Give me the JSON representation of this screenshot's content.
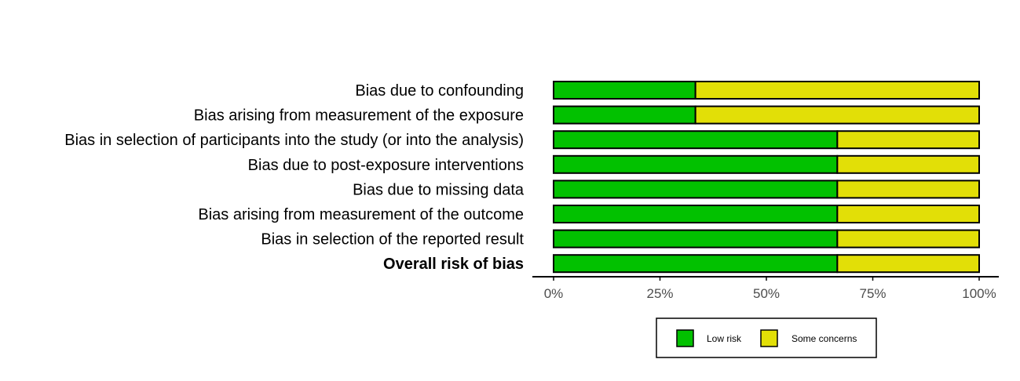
{
  "chart_data": {
    "type": "bar",
    "orientation": "horizontal-stacked",
    "categories": [
      "Bias due to confounding",
      "Bias arising from measurement of the exposure",
      "Bias in selection of participants into the study (or into the analysis)",
      "Bias due to post-exposure interventions",
      "Bias due to missing data",
      "Bias arising from measurement of the outcome",
      "Bias in selection of the reported result",
      "Overall risk of bias"
    ],
    "bold_categories": [
      "Overall risk of bias"
    ],
    "series": [
      {
        "name": "Low risk",
        "color": "#02C100",
        "values": [
          33.33,
          33.33,
          66.67,
          66.67,
          66.67,
          66.67,
          66.67,
          66.67
        ]
      },
      {
        "name": "Some concerns",
        "color": "#E2DF07",
        "values": [
          66.67,
          66.67,
          33.33,
          33.33,
          33.33,
          33.33,
          33.33,
          33.33
        ]
      }
    ],
    "xlim": [
      0,
      100
    ],
    "xticks": [
      0,
      25,
      50,
      75,
      100
    ],
    "xtick_labels": [
      "0%",
      "25%",
      "50%",
      "75%",
      "100%"
    ],
    "title": "",
    "xlabel": "",
    "ylabel": "",
    "grid": false,
    "legend_placement": "bottom"
  }
}
